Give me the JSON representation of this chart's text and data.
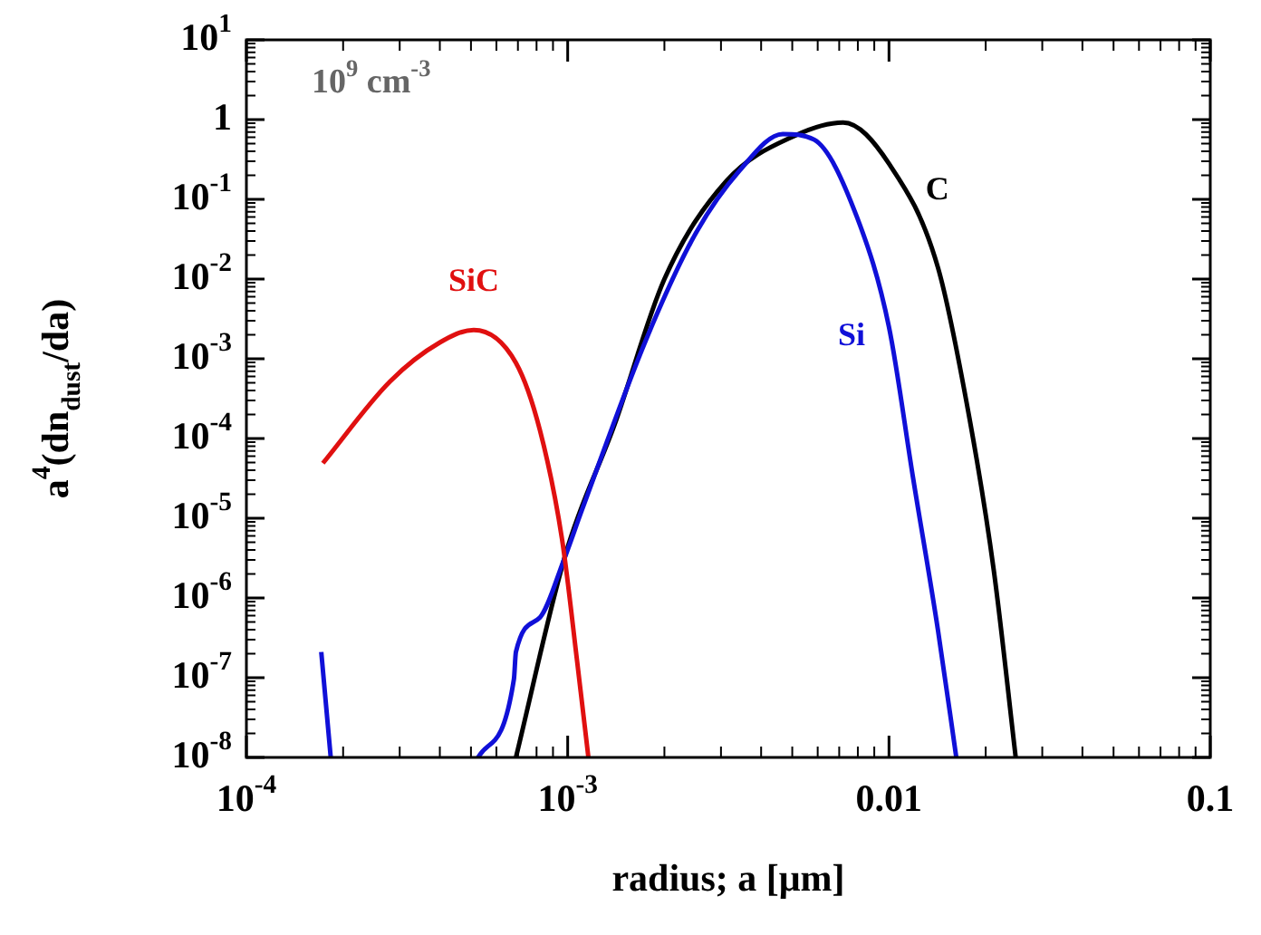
{
  "chart_data": {
    "type": "line",
    "xlabel": "radius; a [μm]",
    "ylabel": "a$^{4}$(dn$_{dust}$/da)",
    "annotations": [
      "10$^{9}$ cm$^{-3}$"
    ],
    "log": "xy",
    "grid": false,
    "legend": false,
    "xlim": [
      0.0001,
      0.1
    ],
    "ylim": [
      1e-08,
      10
    ],
    "xticks": [
      {
        "value": 0.0001,
        "label": "10$^{-4}$"
      },
      {
        "value": 0.001,
        "label": "10$^{-3}$"
      },
      0.01,
      0.1
    ],
    "yticks": [
      {
        "value": 10,
        "label": "10$^{1}$"
      },
      1,
      {
        "value": 0.1,
        "label": "10$^{-1}$"
      },
      {
        "value": 0.01,
        "label": "10$^{-2}$"
      },
      {
        "value": 0.001,
        "label": "10$^{-3}$"
      },
      {
        "value": 0.0001,
        "label": "10$^{-4}$"
      },
      {
        "value": 1e-05,
        "label": "10$^{-5}$"
      },
      {
        "value": 1e-06,
        "label": "10$^{-6}$"
      },
      {
        "value": 1e-07,
        "label": "10$^{-7}$"
      },
      {
        "value": 1e-08,
        "label": "10$^{-8}$"
      }
    ],
    "series": [
      {
        "name": "SiC",
        "color": "#e01010",
        "x": [
          0.000173,
          0.00028,
          0.0004,
          0.00051,
          0.00069,
          0.00082,
          0.00096,
          0.00107,
          0.00116
        ],
        "values": [
          4.9e-05,
          0.00052,
          0.0016,
          0.0023,
          0.00089,
          0.000126,
          5.5e-06,
          1.6e-07,
          1e-08
        ]
      },
      {
        "name": "Si",
        "color": "#1010d8",
        "x": [
          0.000171,
          0.000183,
          0.0003,
          0.000526,
          0.00068,
          0.00069,
          0.00082,
          0.00097,
          0.00111,
          0.00175,
          0.00248,
          0.00343,
          0.00467,
          0.00585,
          0.00796,
          0.01,
          0.0119,
          0.0142,
          0.0162
        ],
        "values": [
          2.1e-07,
          1e-08,
          null,
          1e-08,
          9.5e-08,
          2.1e-07,
          5.7e-07,
          2.9e-06,
          1.3e-05,
          0.0017,
          0.035,
          0.23,
          0.66,
          0.56,
          0.059,
          0.0025,
          3.1e-05,
          4e-07,
          1e-08
        ]
      },
      {
        "name": "C",
        "color": "#000000",
        "x": [
          0.00069,
          0.00099,
          0.0014,
          0.002,
          0.00312,
          0.0051,
          0.0072,
          0.01,
          0.0142,
          0.0178,
          0.0212,
          0.0248
        ],
        "values": [
          1e-08,
          3.8e-06,
          0.00015,
          0.01,
          0.17,
          0.63,
          0.92,
          0.28,
          0.014,
          0.00018,
          2.2e-06,
          1e-08
        ]
      }
    ]
  }
}
